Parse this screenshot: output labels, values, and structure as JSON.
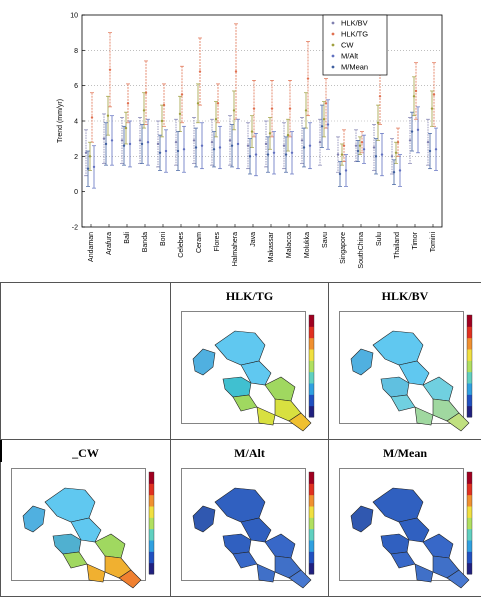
{
  "chart_data": {
    "type": "errorbar",
    "ylabel": "Trend (mm/yr)",
    "ylim": [
      -2,
      10
    ],
    "yticks": [
      -2,
      0,
      2,
      4,
      6,
      8,
      10
    ],
    "categories": [
      "Andaman",
      "Arafura",
      "Bali",
      "Banda",
      "Boni",
      "Celebes",
      "Ceram",
      "Flores",
      "Halmahera",
      "Java",
      "Makassar",
      "Malacca",
      "Molukka",
      "Savu",
      "Singapore",
      "SouthChina",
      "Sulu",
      "Thailand",
      "Timor",
      "Tomini"
    ],
    "series": [
      {
        "name": "HLK/BV",
        "color": "#8080b0",
        "values": [
          2.2,
          3.0,
          2.9,
          2.9,
          2.7,
          2.8,
          2.9,
          2.8,
          2.9,
          2.6,
          2.7,
          2.6,
          2.9,
          2.8,
          2.1,
          2.6,
          2.5,
          2.0,
          2.9,
          2.8
        ],
        "err": [
          1.3,
          1.4,
          1.3,
          1.3,
          1.3,
          1.3,
          1.3,
          1.3,
          1.4,
          1.3,
          1.3,
          1.3,
          1.3,
          1.3,
          1.0,
          0.9,
          1.3,
          1.0,
          1.3,
          1.3
        ]
      },
      {
        "name": "HLK/TG",
        "color": "#e07050",
        "values": [
          4.2,
          6.9,
          5.0,
          5.6,
          4.9,
          5.5,
          6.8,
          5.0,
          6.8,
          4.7,
          4.7,
          4.7,
          6.4,
          5.0,
          2.6,
          2.8,
          5.4,
          2.8,
          5.7,
          5.5
        ],
        "err": [
          1.4,
          2.1,
          1.1,
          1.8,
          1.2,
          1.6,
          1.9,
          1.1,
          2.7,
          1.6,
          1.6,
          1.6,
          2.1,
          1.4,
          0.9,
          0.6,
          1.6,
          0.8,
          1.6,
          1.8
        ]
      },
      {
        "name": "CW",
        "color": "#a0a040",
        "values": [
          2.0,
          4.3,
          3.6,
          4.6,
          4.0,
          4.4,
          5.0,
          4.1,
          4.6,
          3.4,
          3.3,
          3.2,
          4.6,
          4.1,
          2.1,
          2.6,
          3.9,
          2.2,
          5.4,
          4.7
        ],
        "err": [
          0.8,
          1.1,
          0.9,
          1.0,
          0.9,
          1.0,
          1.1,
          1.0,
          1.1,
          0.9,
          0.9,
          0.9,
          1.0,
          1.0,
          0.6,
          0.5,
          1.0,
          0.6,
          1.1,
          1.0
        ]
      },
      {
        "name": "M/Alt",
        "color": "#6070c0",
        "values": [
          1.4,
          2.9,
          2.7,
          2.8,
          2.3,
          2.4,
          2.6,
          2.5,
          2.7,
          2.1,
          2.2,
          2.2,
          2.6,
          3.8,
          1.2,
          2.4,
          2.1,
          1.2,
          3.5,
          2.4
        ],
        "err": [
          1.2,
          1.4,
          1.3,
          1.3,
          1.2,
          1.3,
          1.3,
          1.2,
          1.4,
          1.2,
          1.2,
          1.2,
          1.3,
          1.4,
          0.9,
          0.8,
          1.2,
          0.9,
          1.3,
          1.2
        ]
      },
      {
        "name": "M/Mean",
        "color": "#4060a0",
        "values": [
          1.3,
          2.7,
          2.6,
          2.7,
          2.2,
          2.3,
          2.5,
          2.4,
          2.6,
          2.0,
          2.1,
          2.1,
          2.5,
          3.7,
          1.0,
          2.3,
          2.0,
          1.1,
          3.4,
          2.3
        ],
        "err": [
          1.0,
          1.2,
          1.1,
          1.1,
          1.0,
          1.1,
          1.1,
          1.0,
          1.2,
          1.0,
          1.0,
          1.0,
          1.1,
          1.2,
          0.7,
          0.6,
          1.0,
          0.7,
          1.1,
          1.0
        ]
      }
    ],
    "legend_position": "top-right",
    "hlines": [
      2,
      4,
      6,
      8
    ]
  },
  "panels": {
    "row1": {
      "blank": "",
      "a": "HLK/TG",
      "b": "HLK/BV"
    },
    "row2": {
      "a": "_CW",
      "b": "M/Alt",
      "c": "M/Mean"
    }
  },
  "maps": [
    {
      "key": "HLK/TG",
      "palette": [
        "#3060c0",
        "#50b0e0",
        "#60c8f0",
        "#a0d860",
        "#d8e040",
        "#f0c030",
        "#40c0d0"
      ]
    },
    {
      "key": "HLK/BV",
      "palette": [
        "#3060c0",
        "#50b0e0",
        "#60c8f0",
        "#70d0e0",
        "#a0d8a0",
        "#c0e080",
        "#60c0e0"
      ]
    },
    {
      "key": "_CW",
      "palette": [
        "#3060c0",
        "#50b0e0",
        "#60c8f0",
        "#a0d860",
        "#f0b030",
        "#f08030",
        "#50b0d0"
      ]
    },
    {
      "key": "M/Alt",
      "palette": [
        "#2040a0",
        "#3058b0",
        "#3060c0",
        "#3868c8",
        "#4070c8",
        "#4878d0",
        "#3060c0"
      ]
    },
    {
      "key": "M/Mean",
      "palette": [
        "#2040a0",
        "#3058b0",
        "#3060c0",
        "#3868c8",
        "#4070c8",
        "#4878d0",
        "#3060c0"
      ]
    }
  ]
}
